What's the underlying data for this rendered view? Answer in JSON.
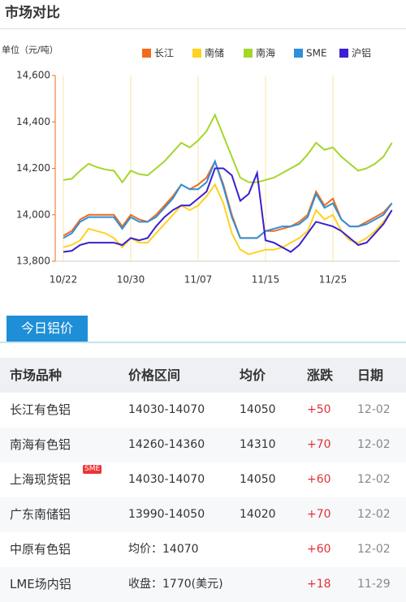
{
  "header": {
    "title": "市场对比"
  },
  "chart_data": {
    "type": "line",
    "unit_label": "单位（元/吨）",
    "categories": [
      "10/22",
      null,
      null,
      null,
      null,
      null,
      null,
      null,
      "10/30",
      null,
      null,
      null,
      null,
      null,
      null,
      null,
      "11/07",
      null,
      null,
      null,
      null,
      null,
      null,
      null,
      "11/15",
      null,
      null,
      null,
      null,
      null,
      null,
      null,
      "11/25",
      null,
      null,
      null,
      null,
      null,
      null,
      null
    ],
    "series": [
      {
        "name": "长江",
        "color": "#f26b1d",
        "values": [
          13910,
          13930,
          13980,
          14000,
          14000,
          14000,
          14000,
          13950,
          14000,
          13980,
          13970,
          14000,
          14040,
          14080,
          14130,
          14110,
          14130,
          14160,
          14230,
          14130,
          14000,
          13900,
          13900,
          13900,
          13930,
          13930,
          13940,
          13950,
          13970,
          14000,
          14100,
          14040,
          14070,
          13980,
          13950,
          13950,
          13970,
          13990,
          14010,
          14050
        ]
      },
      {
        "name": "南储",
        "color": "#ffd21f",
        "values": [
          13860,
          13870,
          13890,
          13940,
          13930,
          13920,
          13900,
          13860,
          13900,
          13880,
          13880,
          13920,
          13960,
          14000,
          14040,
          14020,
          14040,
          14080,
          14130,
          14050,
          13920,
          13850,
          13830,
          13840,
          13850,
          13850,
          13860,
          13880,
          13900,
          13930,
          14020,
          13980,
          14000,
          13930,
          13890,
          13880,
          13900,
          13930,
          13970,
          14020
        ]
      },
      {
        "name": "南海",
        "color": "#a4d62c",
        "values": [
          14150,
          14155,
          14190,
          14220,
          14205,
          14195,
          14190,
          14140,
          14190,
          14175,
          14170,
          14200,
          14230,
          14270,
          14310,
          14290,
          14320,
          14360,
          14430,
          14340,
          14250,
          14160,
          14140,
          14140,
          14150,
          14160,
          14180,
          14200,
          14220,
          14260,
          14310,
          14280,
          14290,
          14250,
          14220,
          14190,
          14200,
          14220,
          14250,
          14310
        ]
      },
      {
        "name": "SME",
        "color": "#2f8fd8",
        "values": [
          13900,
          13920,
          13970,
          13990,
          13990,
          13990,
          13990,
          13940,
          13990,
          13970,
          13970,
          13990,
          14030,
          14070,
          14130,
          14110,
          14110,
          14140,
          14230,
          14120,
          13990,
          13900,
          13900,
          13900,
          13930,
          13940,
          13950,
          13950,
          13960,
          13990,
          14090,
          14030,
          14050,
          13980,
          13950,
          13950,
          13960,
          13980,
          14000,
          14050
        ]
      },
      {
        "name": "沪铝",
        "color": "#3a1fcf",
        "values": [
          13840,
          13845,
          13870,
          13880,
          13880,
          13880,
          13880,
          13870,
          13900,
          13890,
          13900,
          13950,
          13990,
          14020,
          14040,
          14040,
          14070,
          14100,
          14200,
          14200,
          14170,
          14060,
          14090,
          14180,
          13890,
          13880,
          13860,
          13840,
          13870,
          13920,
          13970,
          13960,
          13950,
          13930,
          13900,
          13870,
          13880,
          13920,
          13960,
          14020
        ]
      }
    ],
    "ylim": [
      13800,
      14600
    ],
    "yticks": [
      {
        "value": 13800,
        "label": "13,800"
      },
      {
        "value": 14000,
        "label": "14,000"
      },
      {
        "value": 14200,
        "label": "14,200"
      },
      {
        "value": 14400,
        "label": "14,400"
      },
      {
        "value": 14600,
        "label": "14,600"
      }
    ],
    "grid": true,
    "legend": "top"
  },
  "tab": {
    "title": "今日铝价"
  },
  "table": {
    "headers": [
      "市场品种",
      "价格区间",
      "均价",
      "涨跌",
      "日期"
    ],
    "rows": [
      {
        "cells": [
          "长江有色铝",
          "14030-14070",
          "14050",
          "+50",
          "12-02"
        ]
      },
      {
        "cells": [
          "南海有色铝",
          "14260-14360",
          "14310",
          "+70",
          "12-02"
        ]
      },
      {
        "cells": [
          "上海现货铝",
          "14030-14070",
          "14050",
          "+60",
          "12-02"
        ],
        "badge": "SME"
      },
      {
        "cells": [
          "广东南储铝",
          "13990-14050",
          "14020",
          "+70",
          "12-02"
        ]
      },
      {
        "cells": [
          "中原有色铝",
          "均价：14070",
          "",
          "+60",
          "12-02"
        ]
      },
      {
        "cells": [
          "LME场内铝",
          "收盘：1770(美元)",
          "",
          "+18",
          "11-29"
        ]
      }
    ]
  }
}
